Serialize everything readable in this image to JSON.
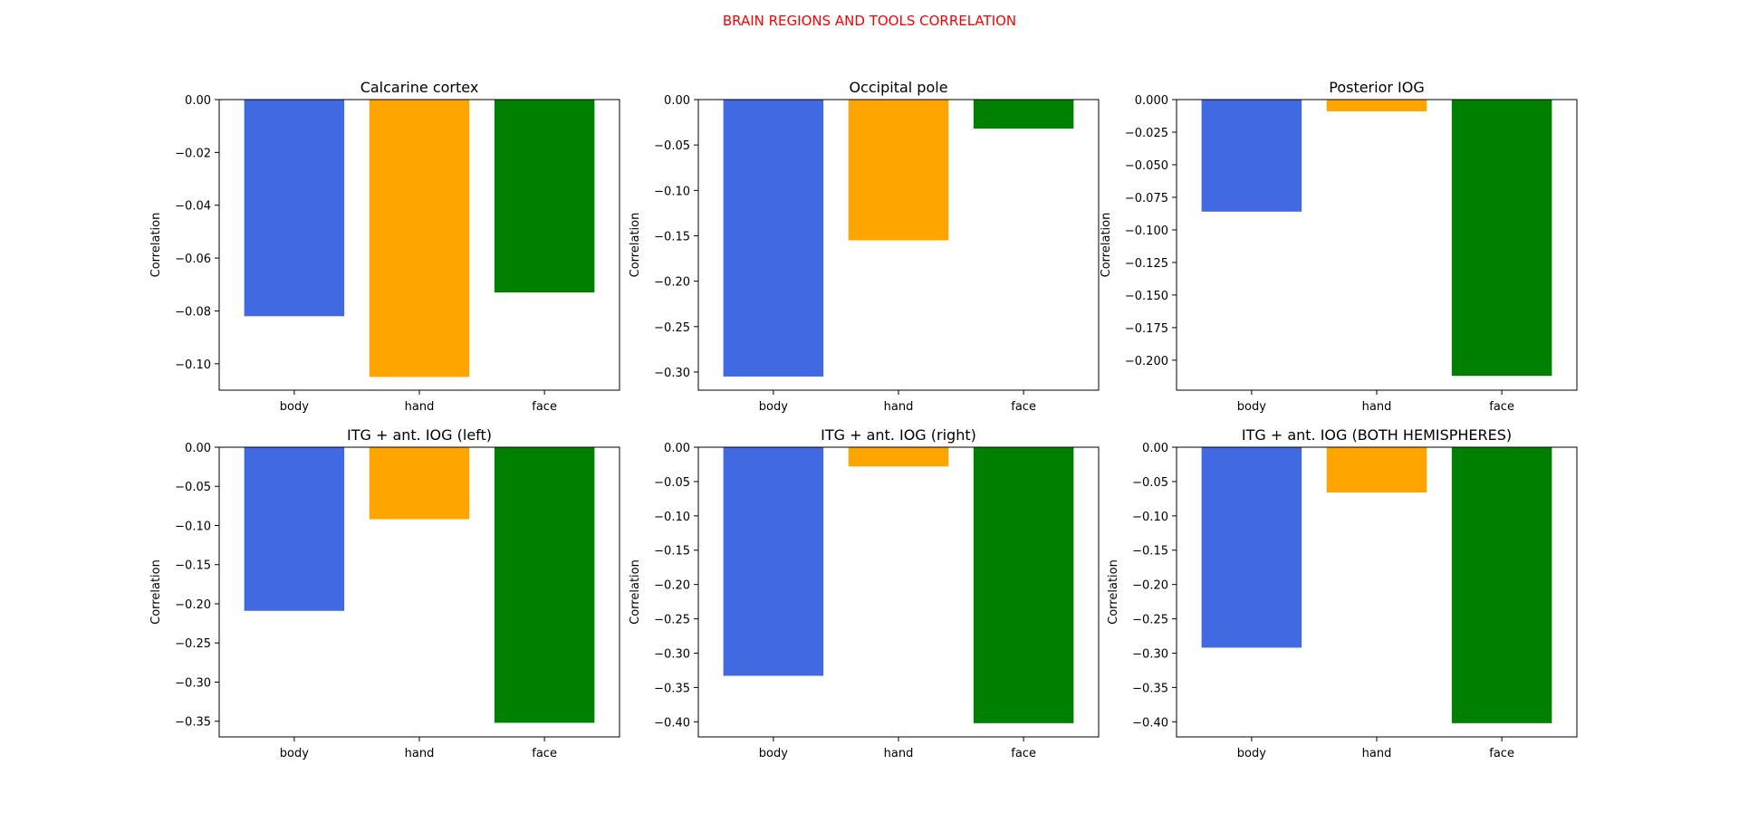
{
  "figure": {
    "title": "BRAIN REGIONS AND TOOLS CORRELATION",
    "title_color": "#ff0000"
  },
  "chart_data": [
    {
      "type": "bar",
      "title": "Calcarine cortex",
      "xlabel": "",
      "ylabel": "Correlation",
      "categories": [
        "body",
        "hand",
        "face"
      ],
      "values": [
        -0.082,
        -0.105,
        -0.073
      ],
      "colors": [
        "#4169e1",
        "#ffa500",
        "#008000"
      ],
      "ylim": [
        -0.11,
        0.0
      ],
      "yticks": [
        0.0,
        -0.02,
        -0.04,
        -0.06,
        -0.08,
        -0.1
      ],
      "ytick_labels": [
        "0.00",
        "−0.02",
        "−0.04",
        "−0.06",
        "−0.08",
        "−0.10"
      ],
      "grid": false
    },
    {
      "type": "bar",
      "title": "Occipital pole",
      "xlabel": "",
      "ylabel": "Correlation",
      "categories": [
        "body",
        "hand",
        "face"
      ],
      "values": [
        -0.305,
        -0.155,
        -0.032
      ],
      "colors": [
        "#4169e1",
        "#ffa500",
        "#008000"
      ],
      "ylim": [
        -0.32,
        0.0
      ],
      "yticks": [
        0.0,
        -0.05,
        -0.1,
        -0.15,
        -0.2,
        -0.25,
        -0.3
      ],
      "ytick_labels": [
        "0.00",
        "−0.05",
        "−0.10",
        "−0.15",
        "−0.20",
        "−0.25",
        "−0.30"
      ],
      "grid": false
    },
    {
      "type": "bar",
      "title": "Posterior IOG",
      "xlabel": "",
      "ylabel": "Correlation",
      "categories": [
        "body",
        "hand",
        "face"
      ],
      "values": [
        -0.086,
        -0.009,
        -0.212
      ],
      "colors": [
        "#4169e1",
        "#ffa500",
        "#008000"
      ],
      "ylim": [
        -0.223,
        0.0
      ],
      "yticks": [
        0.0,
        -0.025,
        -0.05,
        -0.075,
        -0.1,
        -0.125,
        -0.15,
        -0.175,
        -0.2
      ],
      "ytick_labels": [
        "0.000",
        "−0.025",
        "−0.050",
        "−0.075",
        "−0.100",
        "−0.125",
        "−0.150",
        "−0.175",
        "−0.200"
      ],
      "grid": false
    },
    {
      "type": "bar",
      "title": "ITG + ant. IOG (left)",
      "xlabel": "",
      "ylabel": "Correlation",
      "categories": [
        "body",
        "hand",
        "face"
      ],
      "values": [
        -0.209,
        -0.092,
        -0.352
      ],
      "colors": [
        "#4169e1",
        "#ffa500",
        "#008000"
      ],
      "ylim": [
        -0.37,
        0.0
      ],
      "yticks": [
        0.0,
        -0.05,
        -0.1,
        -0.15,
        -0.2,
        -0.25,
        -0.3,
        -0.35
      ],
      "ytick_labels": [
        "0.00",
        "−0.05",
        "−0.10",
        "−0.15",
        "−0.20",
        "−0.25",
        "−0.30",
        "−0.35"
      ],
      "grid": false
    },
    {
      "type": "bar",
      "title": "ITG + ant. IOG (right)",
      "xlabel": "",
      "ylabel": "Correlation",
      "categories": [
        "body",
        "hand",
        "face"
      ],
      "values": [
        -0.333,
        -0.028,
        -0.402
      ],
      "colors": [
        "#4169e1",
        "#ffa500",
        "#008000"
      ],
      "ylim": [
        -0.422,
        0.0
      ],
      "yticks": [
        0.0,
        -0.05,
        -0.1,
        -0.15,
        -0.2,
        -0.25,
        -0.3,
        -0.35,
        -0.4
      ],
      "ytick_labels": [
        "0.00",
        "−0.05",
        "−0.10",
        "−0.15",
        "−0.20",
        "−0.25",
        "−0.30",
        "−0.35",
        "−0.40"
      ],
      "grid": false
    },
    {
      "type": "bar",
      "title": "ITG + ant. IOG (BOTH HEMISPHERES)",
      "xlabel": "",
      "ylabel": "Correlation",
      "categories": [
        "body",
        "hand",
        "face"
      ],
      "values": [
        -0.292,
        -0.066,
        -0.402
      ],
      "colors": [
        "#4169e1",
        "#ffa500",
        "#008000"
      ],
      "ylim": [
        -0.422,
        0.0
      ],
      "yticks": [
        0.0,
        -0.05,
        -0.1,
        -0.15,
        -0.2,
        -0.25,
        -0.3,
        -0.35,
        -0.4
      ],
      "ytick_labels": [
        "0.00",
        "−0.05",
        "−0.10",
        "−0.15",
        "−0.20",
        "−0.25",
        "−0.30",
        "−0.35",
        "−0.40"
      ],
      "grid": false
    }
  ]
}
